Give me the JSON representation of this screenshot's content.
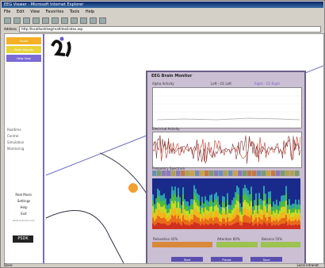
{
  "window": {
    "title": "EEG Viewer - Microsoft Internet Explorer"
  },
  "menu": [
    "File",
    "Edit",
    "View",
    "Favorites",
    "Tools",
    "Help"
  ],
  "toolbar": [
    "Back",
    "Forward",
    "Stop",
    "Refresh",
    "Home",
    "Search",
    "Favorites",
    "Media",
    "History",
    "Mail",
    "Print"
  ],
  "address": {
    "label": "Address",
    "url": "http://localhost/eeg/realtime/index.asp"
  },
  "nav": {
    "buttons": [
      {
        "label": "Home",
        "color": "#f5b026"
      },
      {
        "label": "Brain Signals",
        "color": "#e9d23a"
      },
      {
        "label": "Hear Now",
        "color": "#7b6bd6"
      }
    ],
    "links": [
      "Realtime",
      "Control",
      "Simulation",
      "Monitoring"
    ],
    "links2": [
      "Real Music",
      "Settings",
      "Help",
      "Exit",
      "www.example.com"
    ],
    "logo": "PSDK"
  },
  "panel": {
    "title": "EEG Brain Monitor",
    "chart1_label": "Alpha Activity",
    "chart2_label": "Electrical Activity",
    "spectrum_label": "Frequency Spectrum",
    "legend": [
      "Left - O1 Left",
      "Right - O2 Right"
    ],
    "status_bars": [
      {
        "label": "Relaxation 42%",
        "color": "#d9893a"
      },
      {
        "label": "Attention 60%",
        "color": "#9cc24f"
      },
      {
        "label": "Balance 55%",
        "color": "#9cc24f"
      }
    ],
    "buttons": [
      "Start",
      "Pause",
      "Save",
      "Close"
    ]
  },
  "status": {
    "left": "Done",
    "right": "Local intranet"
  }
}
